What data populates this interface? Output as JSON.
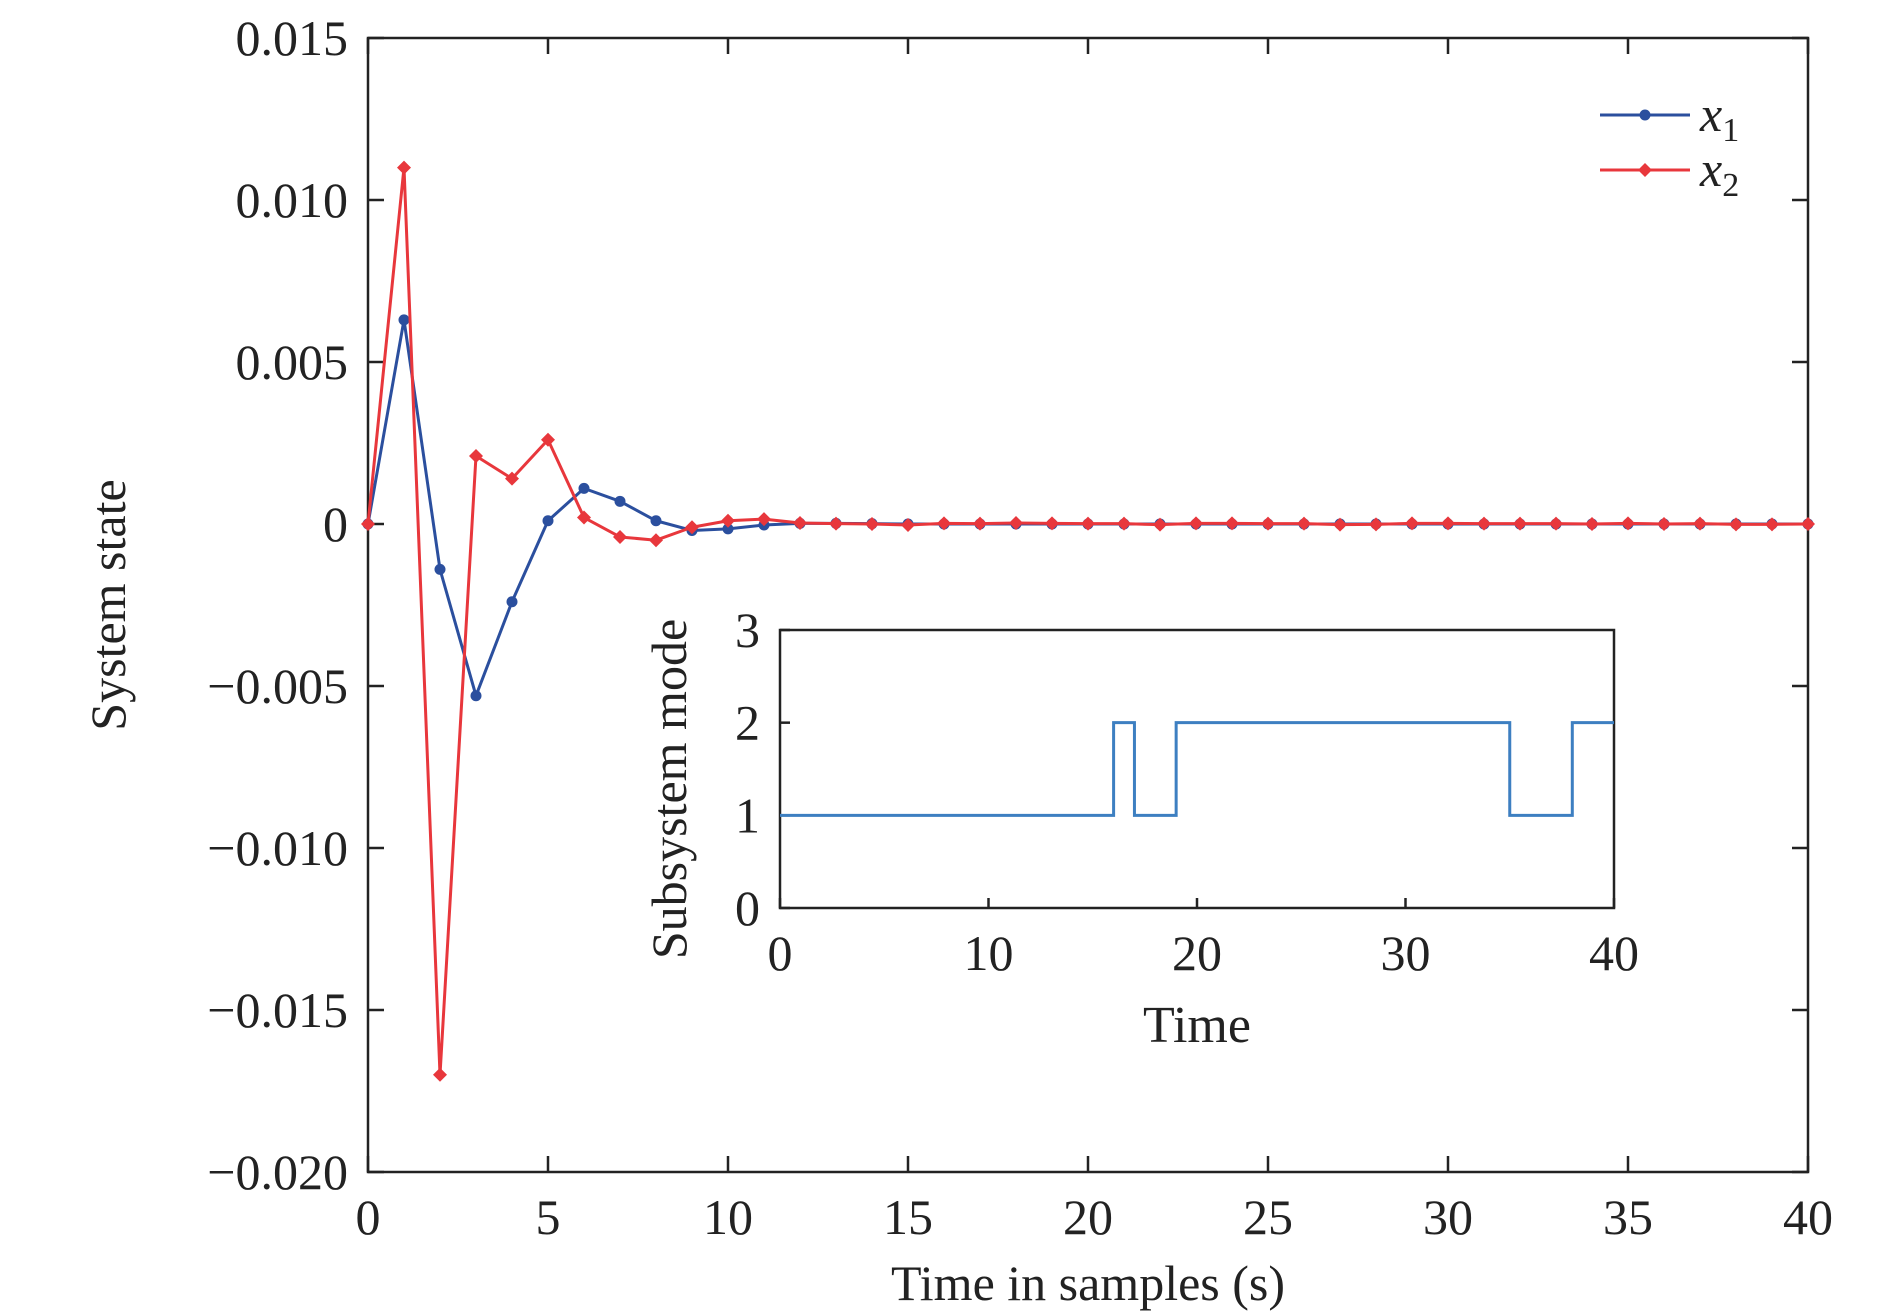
{
  "chart_data": [
    {
      "type": "line",
      "xlabel": "Time in samples (s)",
      "ylabel": "System state",
      "xlim": [
        0,
        40
      ],
      "ylim": [
        -0.02,
        0.015
      ],
      "xticks": [
        "0",
        "5",
        "10",
        "15",
        "20",
        "25",
        "30",
        "35",
        "40"
      ],
      "yticks": [
        "0.015",
        "0.010",
        "0.005",
        "0",
        "−0.005",
        "−0.010",
        "−0.015",
        "−0.020"
      ],
      "grid": false,
      "legend_position": "top-right",
      "x": [
        0,
        1,
        2,
        3,
        4,
        5,
        6,
        7,
        8,
        9,
        10,
        11,
        12,
        13,
        14,
        15,
        16,
        17,
        18,
        19,
        20,
        21,
        22,
        23,
        24,
        25,
        26,
        27,
        28,
        29,
        30,
        31,
        32,
        33,
        34,
        35,
        36,
        37,
        38,
        39,
        40
      ],
      "series": [
        {
          "name": "x",
          "subscript": "1",
          "color": "#2b4f9e",
          "marker": "circle",
          "values": [
            0,
            0.0063,
            -0.0014,
            -0.0053,
            -0.0024,
            0.0001,
            0.0011,
            0.0007,
            0.0001,
            -0.0002,
            -0.00015,
            -3e-05,
            2e-05,
            2e-05,
            1e-05,
            0,
            0,
            0,
            0,
            0,
            0,
            0,
            0,
            0,
            0,
            0,
            0,
            0,
            0,
            0,
            0,
            0,
            0,
            0,
            0,
            0,
            0,
            0,
            0,
            0,
            0
          ]
        },
        {
          "name": "x",
          "subscript": "2",
          "color": "#e8373c",
          "marker": "diamond",
          "values": [
            0,
            0.011,
            -0.017,
            0.0021,
            0.0014,
            0.0026,
            0.0002,
            -0.0004,
            -0.0005,
            -0.0001,
            0.0001,
            0.00015,
            3e-05,
            1e-05,
            0,
            -3e-05,
            2e-05,
            1e-05,
            3e-05,
            2e-05,
            1e-05,
            1e-05,
            -2e-05,
            2e-05,
            2e-05,
            1e-05,
            1e-05,
            -2e-05,
            -1e-05,
            2e-05,
            2e-05,
            1e-05,
            1e-05,
            1e-05,
            0,
            2e-05,
            0,
            1e-05,
            -1e-05,
            -1e-05,
            0
          ]
        }
      ]
    },
    {
      "type": "line",
      "step": true,
      "xlabel": "Time",
      "ylabel": "Subsystem mode",
      "xlim": [
        0,
        40
      ],
      "ylim": [
        0,
        3
      ],
      "xticks": [
        "0",
        "10",
        "20",
        "30",
        "40"
      ],
      "yticks": [
        "3",
        "2",
        "1",
        "0"
      ],
      "grid": false,
      "series": [
        {
          "color": "#3d7fc1",
          "x": [
            0,
            16,
            16,
            17,
            17,
            19,
            19,
            35,
            35,
            38,
            38,
            40
          ],
          "values": [
            1,
            1,
            2,
            2,
            1,
            1,
            2,
            2,
            1,
            1,
            2,
            2
          ]
        }
      ]
    }
  ]
}
